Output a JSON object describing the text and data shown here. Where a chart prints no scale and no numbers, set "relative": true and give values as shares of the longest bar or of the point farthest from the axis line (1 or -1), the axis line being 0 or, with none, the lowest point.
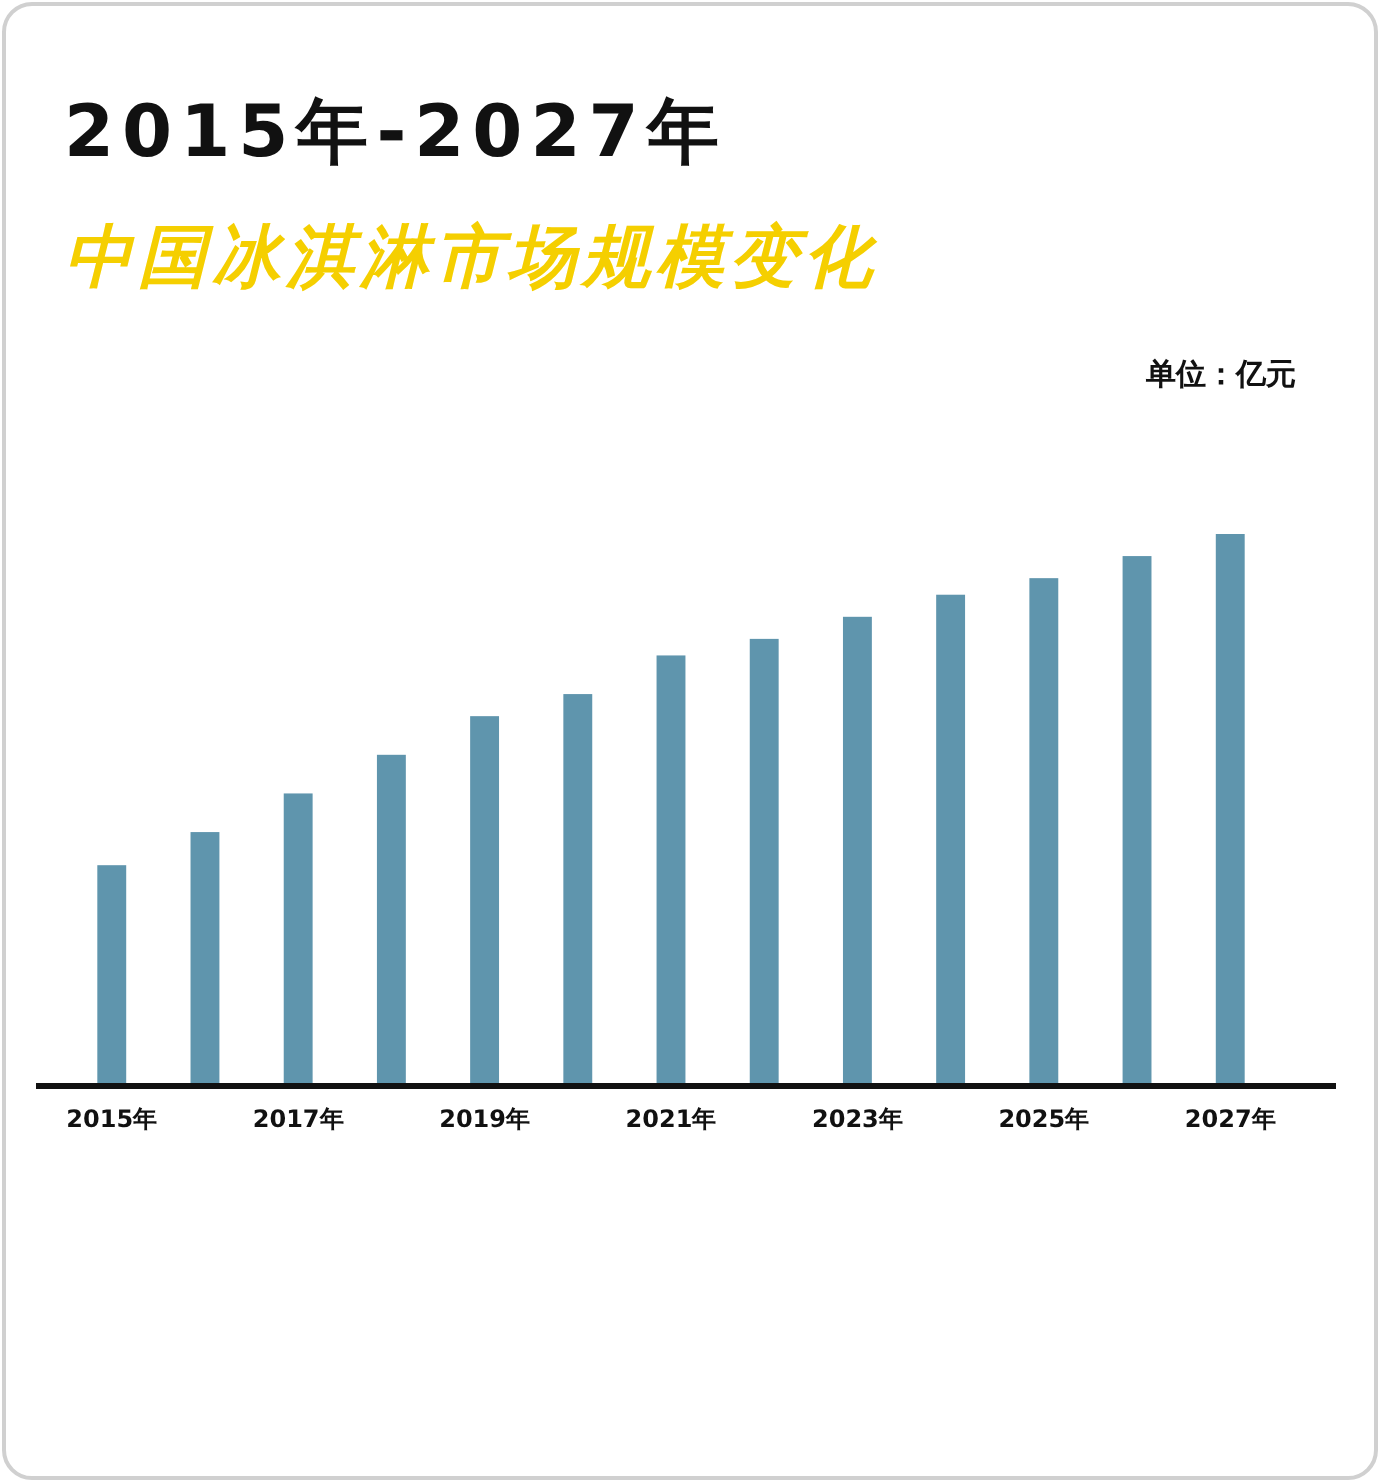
{
  "chart_data": {
    "type": "bar",
    "title": "2015年-2027年",
    "subtitle": "中国冰淇淋市场规模变化",
    "annotations": [
      "单位：亿元"
    ],
    "categories": [
      "2015年",
      null,
      "2017年",
      null,
      "2019年",
      null,
      "2021年",
      null,
      "2023年",
      null,
      "2025年",
      null,
      "2027年"
    ],
    "values": [
      0.4,
      0.46,
      0.53,
      0.6,
      0.67,
      0.71,
      0.78,
      0.81,
      0.85,
      0.89,
      0.92,
      0.96,
      1
    ],
    "color": "#5f95ad",
    "relative": true
  }
}
